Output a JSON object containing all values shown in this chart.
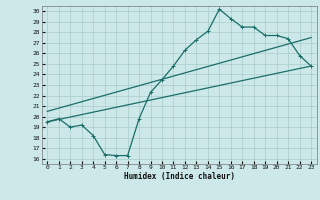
{
  "background_color": "#cce8e8",
  "grid_color": "#aacccc",
  "line_color": "#1a6e6a",
  "xlabel": "Humidex (Indice chaleur)",
  "xlim": [
    -0.5,
    23.5
  ],
  "ylim": [
    15.5,
    30.5
  ],
  "xticks": [
    0,
    1,
    2,
    3,
    4,
    5,
    6,
    7,
    8,
    9,
    10,
    11,
    12,
    13,
    14,
    15,
    16,
    17,
    18,
    19,
    20,
    21,
    22,
    23
  ],
  "yticks": [
    16,
    17,
    18,
    19,
    20,
    21,
    22,
    23,
    24,
    25,
    26,
    27,
    28,
    29,
    30
  ],
  "line1_x": [
    0,
    1,
    2,
    3,
    4,
    5,
    6,
    7,
    8,
    9,
    10,
    11,
    12,
    13,
    14,
    15,
    16,
    17,
    18,
    19,
    20,
    21,
    22,
    23
  ],
  "line1_y": [
    19.5,
    19.8,
    19.0,
    19.2,
    18.2,
    16.4,
    16.3,
    16.3,
    19.8,
    22.3,
    23.5,
    24.8,
    26.3,
    27.3,
    28.1,
    30.2,
    29.3,
    28.5,
    28.5,
    27.7,
    27.7,
    27.4,
    25.8,
    24.8
  ],
  "line2_x": [
    0,
    23
  ],
  "line2_y": [
    20.5,
    27.5
  ],
  "line3_x": [
    0,
    23
  ],
  "line3_y": [
    19.5,
    24.8
  ],
  "marker": "+",
  "markersize": 3,
  "linewidth": 0.9
}
